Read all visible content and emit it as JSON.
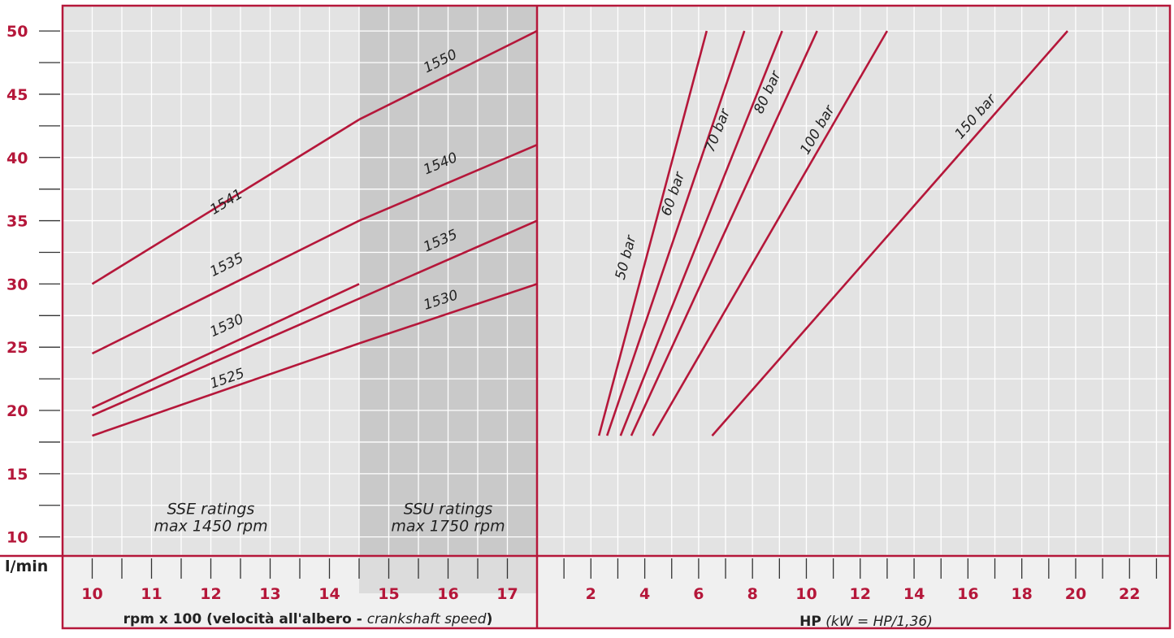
{
  "colors": {
    "accent": "#b5173a",
    "plot_background": "#e3e3e3",
    "shaded_band": "#c9c9c9",
    "grid": "#ffffff",
    "axis_panel": "#f0f0f0",
    "text": "#222222"
  },
  "y_unit": "l/min",
  "x_axis_left_title": {
    "main": "rpm x 100 (velocità all'albero - ",
    "italic": "crankshaft speed",
    "close": ")"
  },
  "x_axis_right_title": {
    "bold": "HP",
    "italic": " (kW = HP/1,36)"
  },
  "chart_data": [
    {
      "type": "line",
      "xlabel": "rpm x 100 (velocità all'albero - crankshaft speed)",
      "ylabel": "l/min",
      "xlim": [
        9.5,
        17.5
      ],
      "ylim": [
        8.5,
        52
      ],
      "x_ticks": [
        10,
        11,
        12,
        13,
        14,
        15,
        16,
        17
      ],
      "y_ticks": [
        10,
        15,
        20,
        25,
        30,
        35,
        40,
        45,
        50
      ],
      "grid": true,
      "shaded_region": {
        "x": [
          14.5,
          17.5
        ]
      },
      "zone_notes": [
        {
          "line1": "SSE ratings",
          "line2": "max 1450 rpm",
          "x": 12,
          "y": 11.8
        },
        {
          "line1": "SSU ratings",
          "line2": "max 1750 rpm",
          "x": 16,
          "y": 11.8
        }
      ],
      "series": [
        {
          "name": "1541",
          "x": [
            10,
            14.5
          ],
          "y": [
            30,
            43
          ],
          "label_at": [
            12.3,
            36.2
          ]
        },
        {
          "name": "1550",
          "x": [
            14.5,
            17.5
          ],
          "y": [
            43,
            50
          ],
          "label_at": [
            15.9,
            47.3
          ]
        },
        {
          "name": "1535",
          "x": [
            10,
            14.5
          ],
          "y": [
            24.5,
            35
          ],
          "label_at": [
            12.3,
            31.2
          ]
        },
        {
          "name": "1540",
          "x": [
            14.5,
            17.5
          ],
          "y": [
            35,
            41
          ],
          "label_at": [
            15.9,
            39.2
          ]
        },
        {
          "name": "1530",
          "x": [
            10,
            14.5
          ],
          "y": [
            20.2,
            30
          ],
          "label_at": [
            12.3,
            26.4
          ]
        },
        {
          "name": "1535",
          "x": [
            10,
            17.5
          ],
          "y": [
            19.6,
            35
          ],
          "label_at": [
            15.9,
            33.1
          ]
        },
        {
          "name": "1525",
          "x": [
            10,
            14.5
          ],
          "y": [
            18,
            25.3
          ],
          "label_at": [
            12.3,
            22.2
          ]
        },
        {
          "name": "1530",
          "x": [
            14.5,
            17.5
          ],
          "y": [
            25.3,
            30
          ],
          "label_at": [
            15.9,
            28.4
          ]
        }
      ]
    },
    {
      "type": "line",
      "xlabel": "HP (kW = HP/1,36)",
      "ylabel": "l/min",
      "xlim": [
        0,
        23.5
      ],
      "ylim": [
        8.5,
        52
      ],
      "x_ticks": [
        2,
        4,
        6,
        8,
        10,
        12,
        14,
        16,
        18,
        20,
        22
      ],
      "y_ticks": [
        10,
        15,
        20,
        25,
        30,
        35,
        40,
        45,
        50
      ],
      "grid": true,
      "series": [
        {
          "name": "50 bar",
          "x": [
            2.3,
            6.3
          ],
          "y": [
            18,
            50
          ],
          "label_at": [
            3.45,
            32
          ]
        },
        {
          "name": "60 bar",
          "x": [
            2.6,
            7.7
          ],
          "y": [
            18,
            50
          ],
          "label_at": [
            5.2,
            37
          ]
        },
        {
          "name": "70 bar",
          "x": [
            3.1,
            9.1
          ],
          "y": [
            18,
            50
          ],
          "label_at": [
            6.85,
            42
          ]
        },
        {
          "name": "80 bar",
          "x": [
            3.5,
            10.4
          ],
          "y": [
            18,
            50
          ],
          "label_at": [
            8.7,
            45
          ]
        },
        {
          "name": "100 bar",
          "x": [
            4.3,
            13
          ],
          "y": [
            18,
            50
          ],
          "label_at": [
            10.55,
            42
          ]
        },
        {
          "name": "150 bar",
          "x": [
            6.5,
            19.7
          ],
          "y": [
            18,
            50
          ],
          "label_at": [
            16.4,
            43
          ]
        }
      ]
    }
  ]
}
